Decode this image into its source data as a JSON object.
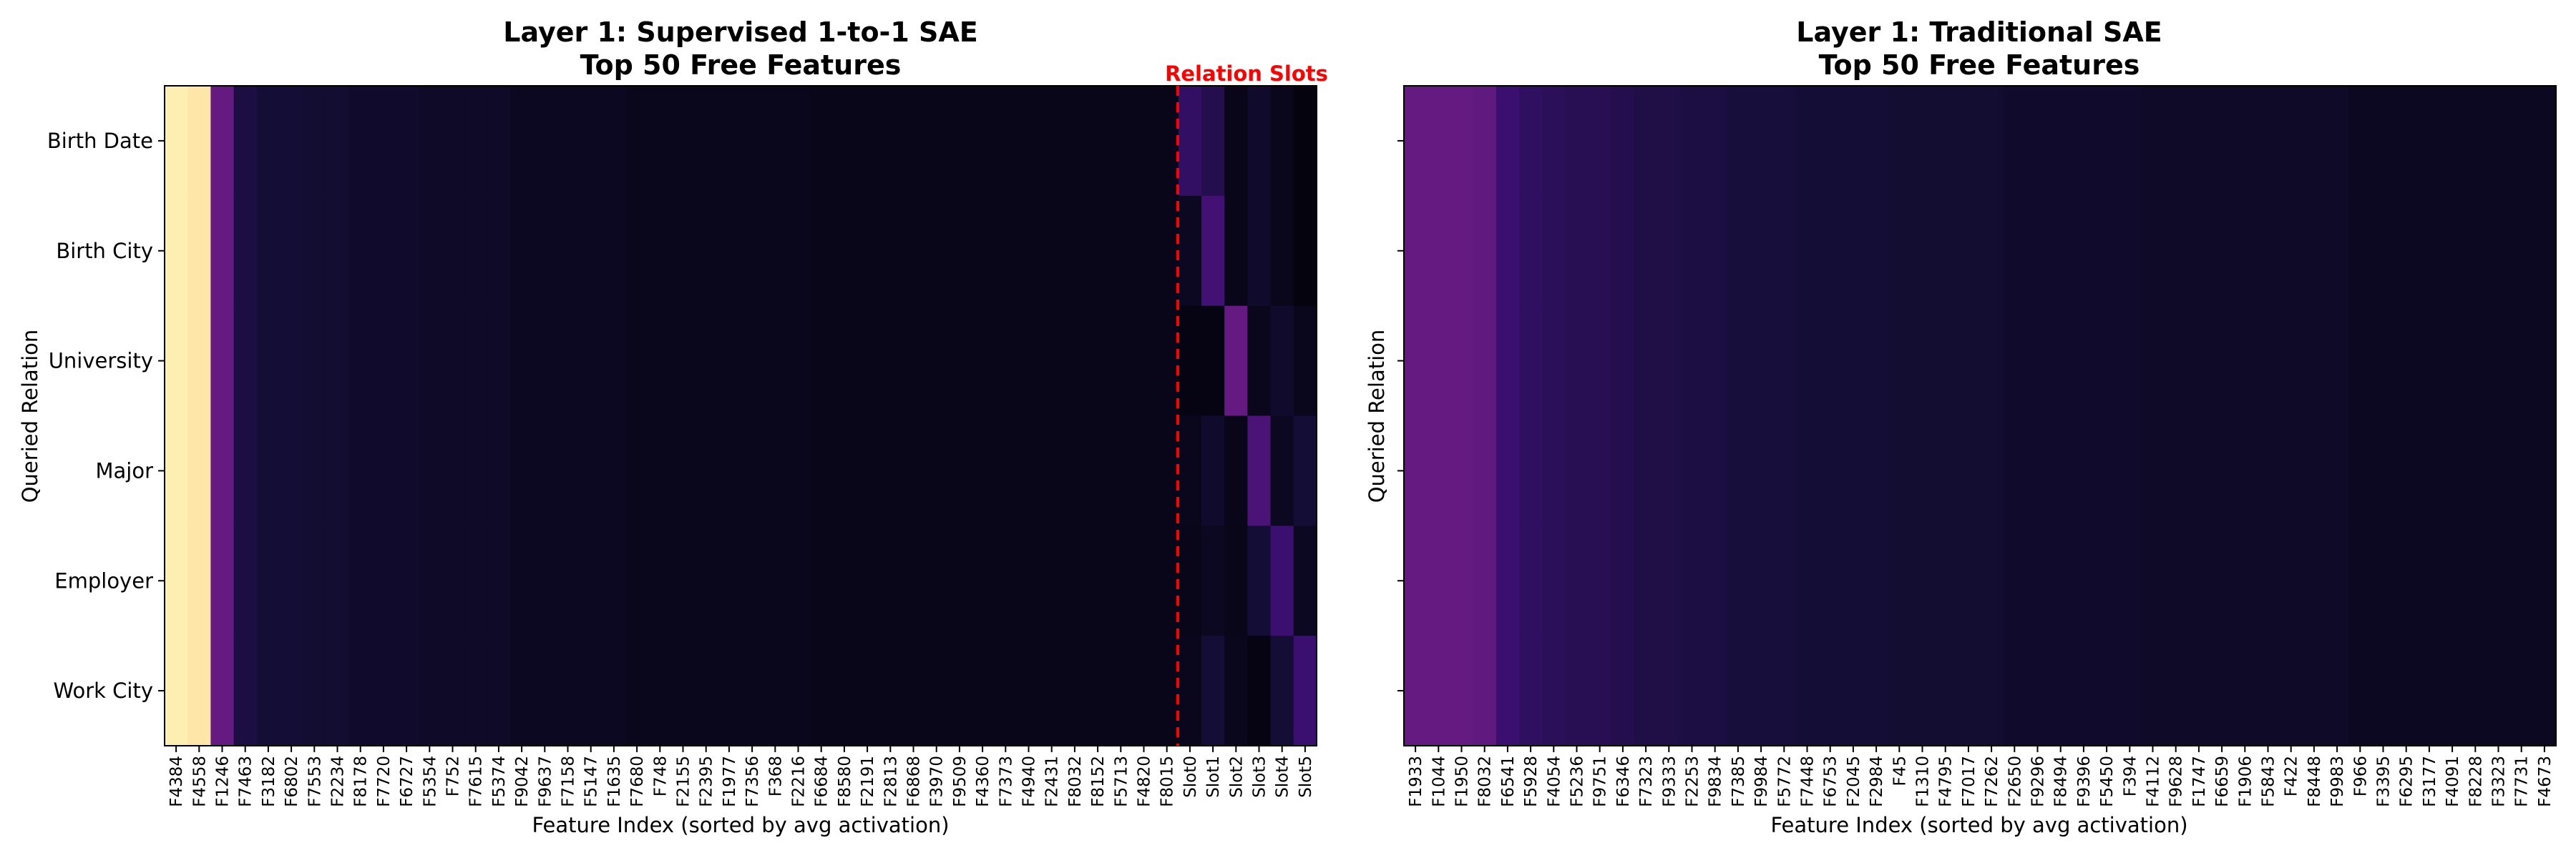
{
  "chart_data": [
    {
      "type": "heatmap",
      "title": "Layer 1: Supervised 1-to-1 SAE",
      "subtitle": "Top 50 Free Features",
      "xlabel": "Feature Index (sorted by avg activation)",
      "ylabel": "Queried Relation",
      "rows": [
        "Birth Date",
        "Birth City",
        "University",
        "Major",
        "Employer",
        "Work City"
      ],
      "columns": [
        "F4384",
        "F4558",
        "F1246",
        "F7463",
        "F3182",
        "F6802",
        "F7553",
        "F2234",
        "F8178",
        "F7720",
        "F6727",
        "F5354",
        "F752",
        "F7615",
        "F5374",
        "F9042",
        "F9637",
        "F7158",
        "F5147",
        "F1635",
        "F7680",
        "F748",
        "F2155",
        "F2395",
        "F1977",
        "F7356",
        "F368",
        "F2216",
        "F6684",
        "F8580",
        "F2191",
        "F2813",
        "F6868",
        "F3970",
        "F9509",
        "F4360",
        "F7373",
        "F4940",
        "F2431",
        "F8032",
        "F8152",
        "F5713",
        "F4820",
        "F8015",
        "Slot0",
        "Slot1",
        "Slot2",
        "Slot3",
        "Slot4",
        "Slot5"
      ],
      "colormap": "magma",
      "annotation": "Relation Slots",
      "base_values": [
        0.97,
        0.95,
        0.3,
        0.12,
        0.1,
        0.1,
        0.09,
        0.09,
        0.08,
        0.08,
        0.08,
        0.07,
        0.07,
        0.07,
        0.07,
        0.06,
        0.06,
        0.06,
        0.06,
        0.06,
        0.05,
        0.05,
        0.05,
        0.05,
        0.05,
        0.05,
        0.05,
        0.05,
        0.04,
        0.04,
        0.04,
        0.04,
        0.04,
        0.04,
        0.04,
        0.04,
        0.04,
        0.04,
        0.04,
        0.04,
        0.04,
        0.04,
        0.04,
        0.04
      ],
      "slot_values": [
        [
          0.18,
          0.14,
          0.04,
          0.08,
          0.05,
          0.02
        ],
        [
          0.06,
          0.22,
          0.04,
          0.08,
          0.05,
          0.02
        ],
        [
          0.03,
          0.03,
          0.3,
          0.05,
          0.08,
          0.05
        ],
        [
          0.05,
          0.08,
          0.04,
          0.24,
          0.06,
          0.1
        ],
        [
          0.04,
          0.06,
          0.04,
          0.1,
          0.2,
          0.06
        ],
        [
          0.05,
          0.1,
          0.05,
          0.03,
          0.1,
          0.2
        ]
      ]
    },
    {
      "type": "heatmap",
      "title": "Layer 1: Traditional SAE",
      "subtitle": "Top 50 Free Features",
      "xlabel": "Feature Index (sorted by avg activation)",
      "ylabel": "Queried Relation",
      "rows": [
        "Birth Date",
        "Birth City",
        "University",
        "Major",
        "Employer",
        "Work City"
      ],
      "columns": [
        "F1933",
        "F1044",
        "F1950",
        "F8032",
        "F6541",
        "F5928",
        "F4054",
        "F5236",
        "F9751",
        "F6346",
        "F7323",
        "F9333",
        "F2253",
        "F9834",
        "F7385",
        "F9984",
        "F5772",
        "F7448",
        "F6753",
        "F2045",
        "F2984",
        "F45",
        "F1310",
        "F4795",
        "F7017",
        "F7262",
        "F2650",
        "F9296",
        "F8494",
        "F9396",
        "F5450",
        "F394",
        "F4112",
        "F9628",
        "F1747",
        "F6659",
        "F1906",
        "F5843",
        "F422",
        "F8448",
        "F9983",
        "F966",
        "F3395",
        "F6295",
        "F3177",
        "F4091",
        "F8228",
        "F3323",
        "F7731",
        "F4673"
      ],
      "colormap": "magma",
      "base_values": [
        0.3,
        0.3,
        0.3,
        0.29,
        0.2,
        0.17,
        0.16,
        0.15,
        0.15,
        0.14,
        0.13,
        0.13,
        0.12,
        0.12,
        0.11,
        0.11,
        0.11,
        0.1,
        0.1,
        0.1,
        0.1,
        0.09,
        0.09,
        0.09,
        0.09,
        0.09,
        0.08,
        0.08,
        0.08,
        0.08,
        0.08,
        0.08,
        0.07,
        0.07,
        0.07,
        0.07,
        0.07,
        0.07,
        0.07,
        0.07,
        0.07,
        0.06,
        0.06,
        0.06,
        0.06,
        0.06,
        0.06,
        0.06,
        0.06,
        0.06
      ]
    }
  ]
}
